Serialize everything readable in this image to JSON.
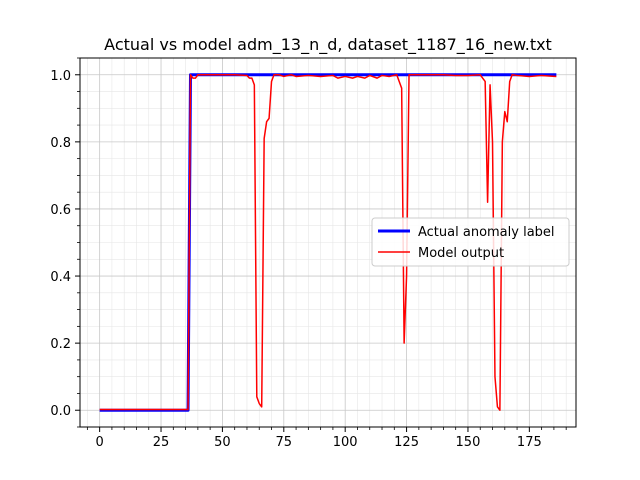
{
  "chart_data": {
    "type": "line",
    "title": "Actual vs model adm_13_n_d, dataset_1187_16_new.txt",
    "xlabel": "",
    "ylabel": "",
    "xlim": [
      -8,
      194
    ],
    "ylim": [
      -0.05,
      1.05
    ],
    "x_ticks": [
      0,
      25,
      50,
      75,
      100,
      125,
      150,
      175
    ],
    "y_ticks": [
      0.0,
      0.2,
      0.4,
      0.6,
      0.8,
      1.0
    ],
    "x_tick_labels": [
      "0",
      "25",
      "50",
      "75",
      "100",
      "125",
      "150",
      "175"
    ],
    "y_tick_labels": [
      "0.0",
      "0.2",
      "0.4",
      "0.6",
      "0.8",
      "1.0"
    ],
    "grid": true,
    "minor_grid": true,
    "legend_position": "center-right",
    "series": [
      {
        "name": "Actual anomaly label",
        "color": "#0000ff",
        "width": 3,
        "points": [
          [
            0,
            0
          ],
          [
            36,
            0
          ],
          [
            37,
            1
          ],
          [
            186,
            1
          ]
        ]
      },
      {
        "name": "Model output",
        "color": "#ff0000",
        "width": 1.5,
        "points": [
          [
            0,
            0.002
          ],
          [
            36,
            0.002
          ],
          [
            37,
            1.0
          ],
          [
            38,
            0.99
          ],
          [
            39,
            0.99
          ],
          [
            40,
            1.0
          ],
          [
            45,
            1.0
          ],
          [
            50,
            1.0
          ],
          [
            55,
            1.0
          ],
          [
            60,
            0.998
          ],
          [
            61,
            0.99
          ],
          [
            62,
            0.99
          ],
          [
            63,
            0.97
          ],
          [
            64,
            0.04
          ],
          [
            65,
            0.02
          ],
          [
            66,
            0.01
          ],
          [
            67,
            0.81
          ],
          [
            68,
            0.86
          ],
          [
            69,
            0.87
          ],
          [
            70,
            0.98
          ],
          [
            71,
            1.0
          ],
          [
            73,
            1.0
          ],
          [
            75,
            0.995
          ],
          [
            78,
            1.0
          ],
          [
            80,
            0.995
          ],
          [
            85,
            0.998
          ],
          [
            90,
            0.995
          ],
          [
            95,
            0.998
          ],
          [
            97,
            0.99
          ],
          [
            100,
            0.995
          ],
          [
            103,
            0.99
          ],
          [
            105,
            0.995
          ],
          [
            108,
            0.99
          ],
          [
            110,
            0.998
          ],
          [
            113,
            0.99
          ],
          [
            115,
            0.998
          ],
          [
            118,
            0.995
          ],
          [
            121,
            1.0
          ],
          [
            122,
            0.98
          ],
          [
            123,
            0.96
          ],
          [
            124,
            0.2
          ],
          [
            125,
            0.4
          ],
          [
            126,
            1.0
          ],
          [
            130,
            1.0
          ],
          [
            135,
            1.0
          ],
          [
            140,
            1.0
          ],
          [
            145,
            0.998
          ],
          [
            150,
            0.998
          ],
          [
            155,
            1.0
          ],
          [
            156,
            0.99
          ],
          [
            157,
            0.98
          ],
          [
            158,
            0.62
          ],
          [
            159,
            0.97
          ],
          [
            160,
            0.8
          ],
          [
            161,
            0.1
          ],
          [
            162,
            0.01
          ],
          [
            163,
            0.0
          ],
          [
            164,
            0.8
          ],
          [
            165,
            0.89
          ],
          [
            166,
            0.86
          ],
          [
            167,
            0.98
          ],
          [
            168,
            1.0
          ],
          [
            170,
            0.998
          ],
          [
            175,
            0.995
          ],
          [
            180,
            0.998
          ],
          [
            186,
            0.995
          ]
        ]
      }
    ]
  }
}
